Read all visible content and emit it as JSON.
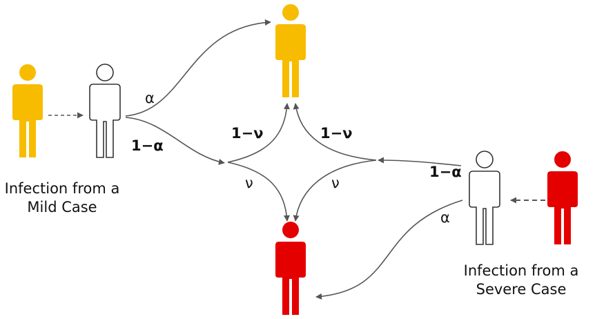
{
  "colors": {
    "mild": "#f7bc00",
    "severe": "#e50000",
    "susceptible_fill": "#ffffff",
    "susceptible_stroke": "#333333",
    "arrow": "#555555"
  },
  "figures": {
    "mild_source": {
      "icon": "person-icon",
      "color": "mild"
    },
    "mild_contact": {
      "icon": "person-outline-icon",
      "color": "susceptible"
    },
    "mild_outcome": {
      "icon": "person-icon",
      "color": "mild"
    },
    "severe_outcome": {
      "icon": "person-icon",
      "color": "severe"
    },
    "severe_contact": {
      "icon": "person-outline-icon",
      "color": "susceptible"
    },
    "severe_source": {
      "icon": "person-icon",
      "color": "severe"
    }
  },
  "captions": {
    "mild": {
      "line1": "Infection from a",
      "line2": "Mild Case"
    },
    "severe": {
      "line1": "Infection from a",
      "line2": "Severe Case"
    }
  },
  "labels": {
    "mild_alpha": "α",
    "mild_one_minus_alpha": "1−α",
    "left_one_minus_nu": "1−ν",
    "right_one_minus_nu": "1−ν",
    "left_nu": "ν",
    "right_nu": "ν",
    "severe_one_minus_alpha": "1−α",
    "severe_alpha": "α"
  }
}
